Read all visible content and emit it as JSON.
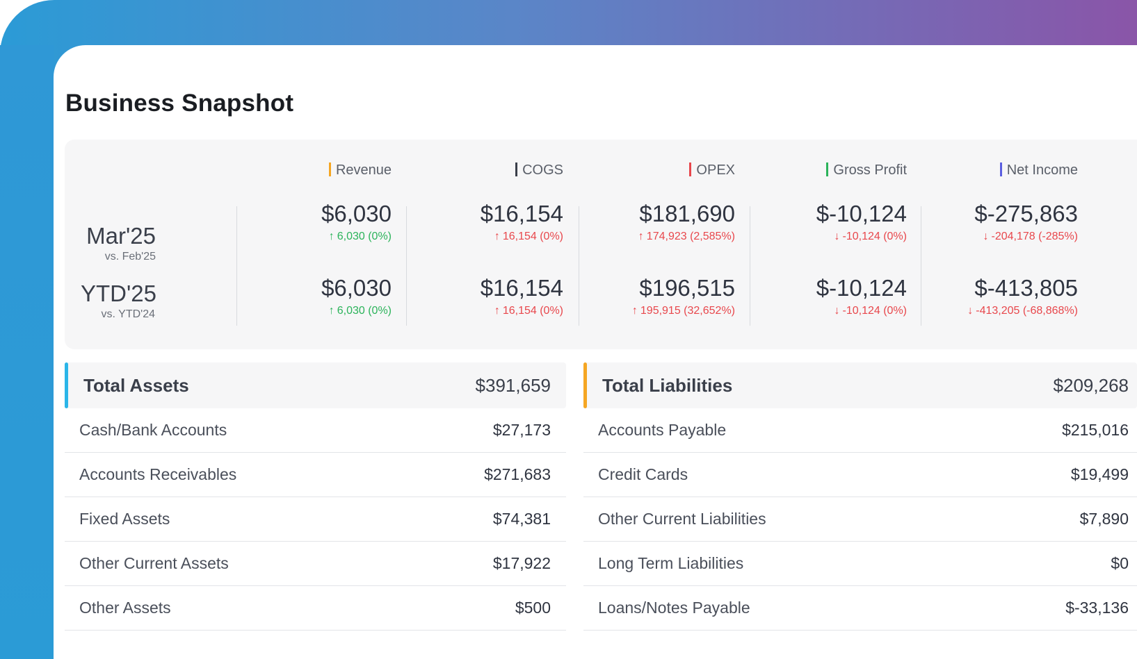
{
  "title": "Business Snapshot",
  "periods": [
    {
      "name": "Mar'25",
      "vs": "vs. Feb'25"
    },
    {
      "name": "YTD'25",
      "vs": "vs. YTD'24"
    }
  ],
  "metrics": [
    {
      "label": "Revenue",
      "color": "#f5a623",
      "p1": {
        "value": "$6,030",
        "delta": "6,030 (0%)",
        "dir": "up"
      },
      "p2": {
        "value": "$6,030",
        "delta": "6,030 (0%)",
        "dir": "up"
      }
    },
    {
      "label": "COGS",
      "color": "#3a3f4a",
      "p1": {
        "value": "$16,154",
        "delta": "16,154 (0%)",
        "dir": "up-bad"
      },
      "p2": {
        "value": "$16,154",
        "delta": "16,154 (0%)",
        "dir": "up-bad"
      }
    },
    {
      "label": "OPEX",
      "color": "#e8474c",
      "p1": {
        "value": "$181,690",
        "delta": "174,923 (2,585%)",
        "dir": "up-bad"
      },
      "p2": {
        "value": "$196,515",
        "delta": "195,915 (32,652%)",
        "dir": "up-bad"
      }
    },
    {
      "label": "Gross Profit",
      "color": "#2bb35a",
      "p1": {
        "value": "$-10,124",
        "delta": "-10,124 (0%)",
        "dir": "down"
      },
      "p2": {
        "value": "$-10,124",
        "delta": "-10,124 (0%)",
        "dir": "down"
      }
    },
    {
      "label": "Net Income",
      "color": "#5b5fe0",
      "p1": {
        "value": "$-275,863",
        "delta": "-204,178 (-285%)",
        "dir": "down"
      },
      "p2": {
        "value": "$-413,805",
        "delta": "-413,205 (-68,868%)",
        "dir": "down"
      }
    }
  ],
  "assets": {
    "label": "Total Assets",
    "amount": "$391,659",
    "accent": "#2bb5e8",
    "rows": [
      {
        "label": "Cash/Bank Accounts",
        "value": "$27,173"
      },
      {
        "label": "Accounts Receivables",
        "value": "$271,683"
      },
      {
        "label": "Fixed Assets",
        "value": "$74,381"
      },
      {
        "label": "Other Current Assets",
        "value": "$17,922"
      },
      {
        "label": "Other Assets",
        "value": "$500"
      }
    ]
  },
  "liabilities": {
    "label": "Total Liabilities",
    "amount": "$209,268",
    "accent": "#f5a623",
    "rows": [
      {
        "label": "Accounts Payable",
        "value": "$215,016"
      },
      {
        "label": "Credit Cards",
        "value": "$19,499"
      },
      {
        "label": "Other Current Liabilities",
        "value": "$7,890"
      },
      {
        "label": "Long Term Liabilities",
        "value": "$0"
      },
      {
        "label": "Loans/Notes Payable",
        "value": "$-33,136"
      }
    ]
  },
  "icons": {
    "up": "arrow-up-icon",
    "down": "arrow-down-icon"
  }
}
